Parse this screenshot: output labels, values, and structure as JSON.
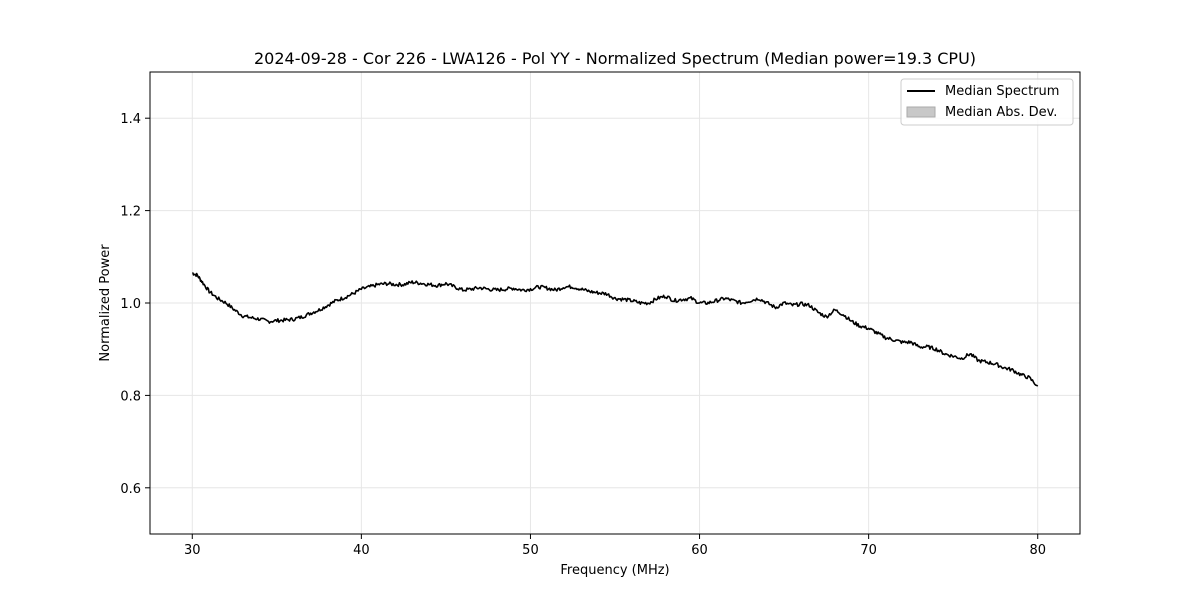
{
  "chart_data": {
    "type": "line",
    "title": "2024-09-28 - Cor 226 - LWA126 - Pol YY - Normalized Spectrum (Median power=19.3 CPU)",
    "xlabel": "Frequency (MHz)",
    "ylabel": "Normalized Power",
    "xlim": [
      27.5,
      82.5
    ],
    "ylim": [
      0.5,
      1.5
    ],
    "xticks": [
      30,
      40,
      50,
      60,
      70,
      80
    ],
    "yticks": [
      0.6,
      0.8,
      1.0,
      1.2,
      1.4
    ],
    "xtick_labels": [
      "30",
      "40",
      "50",
      "60",
      "70",
      "80"
    ],
    "ytick_labels": [
      "0.6",
      "0.8",
      "1.0",
      "1.2",
      "1.4"
    ],
    "grid": true,
    "legend_position": "top-right",
    "legend": [
      {
        "label": "Median Spectrum",
        "kind": "line",
        "color": "#000000"
      },
      {
        "label": "Median Abs. Dev.",
        "kind": "patch",
        "color": "#c8c8c8"
      }
    ],
    "series": [
      {
        "name": "Median Spectrum",
        "color": "#000000",
        "x": [
          30.0,
          30.3,
          30.6,
          31.0,
          31.5,
          32.0,
          32.5,
          33.0,
          33.5,
          34.0,
          34.5,
          35.0,
          35.5,
          36.0,
          36.5,
          37.0,
          37.5,
          38.0,
          38.5,
          39.0,
          39.5,
          40.0,
          40.5,
          41.0,
          41.5,
          42.0,
          42.5,
          43.0,
          43.5,
          44.0,
          44.5,
          45.0,
          45.5,
          46.0,
          46.5,
          47.0,
          47.5,
          48.0,
          48.5,
          49.0,
          49.5,
          50.0,
          50.5,
          51.0,
          51.5,
          52.0,
          52.5,
          53.0,
          53.5,
          54.0,
          54.5,
          55.0,
          55.5,
          56.0,
          56.5,
          57.0,
          57.5,
          58.0,
          58.5,
          59.0,
          59.5,
          60.0,
          60.5,
          61.0,
          61.5,
          62.0,
          62.5,
          63.0,
          63.5,
          64.0,
          64.5,
          65.0,
          65.5,
          66.0,
          66.5,
          67.0,
          67.5,
          68.0,
          68.5,
          69.0,
          69.5,
          70.0,
          70.5,
          71.0,
          71.5,
          72.0,
          72.5,
          73.0,
          73.5,
          74.0,
          74.5,
          75.0,
          75.5,
          76.0,
          76.5,
          77.0,
          77.5,
          78.0,
          78.5,
          79.0,
          79.5,
          80.0
        ],
        "values": [
          1.065,
          1.06,
          1.045,
          1.025,
          1.01,
          1.0,
          0.985,
          0.972,
          0.968,
          0.965,
          0.96,
          0.962,
          0.963,
          0.965,
          0.97,
          0.978,
          0.985,
          0.995,
          1.005,
          1.012,
          1.02,
          1.03,
          1.035,
          1.04,
          1.042,
          1.04,
          1.04,
          1.045,
          1.043,
          1.04,
          1.038,
          1.042,
          1.035,
          1.028,
          1.03,
          1.033,
          1.03,
          1.028,
          1.03,
          1.032,
          1.028,
          1.03,
          1.035,
          1.032,
          1.028,
          1.035,
          1.035,
          1.03,
          1.025,
          1.022,
          1.02,
          1.01,
          1.008,
          1.005,
          1.0,
          1.0,
          1.01,
          1.015,
          1.005,
          1.008,
          1.01,
          1.0,
          1.0,
          1.005,
          1.01,
          1.005,
          1.0,
          1.005,
          1.01,
          1.0,
          0.99,
          1.0,
          0.995,
          0.998,
          0.995,
          0.98,
          0.97,
          0.985,
          0.975,
          0.96,
          0.95,
          0.945,
          0.935,
          0.925,
          0.92,
          0.915,
          0.915,
          0.905,
          0.905,
          0.9,
          0.89,
          0.885,
          0.88,
          0.89,
          0.875,
          0.872,
          0.868,
          0.86,
          0.855,
          0.845,
          0.838,
          0.82
        ]
      }
    ]
  }
}
